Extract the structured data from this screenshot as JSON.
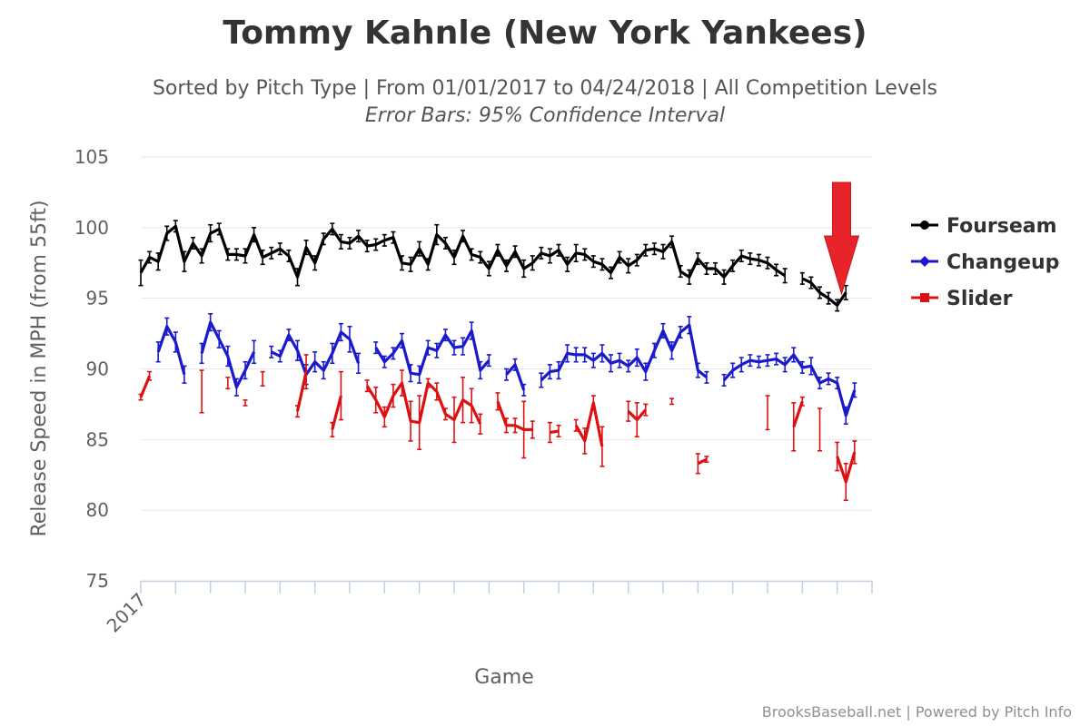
{
  "chart_data": {
    "type": "line",
    "title": "Tommy Kahnle (New York Yankees)",
    "subtitle": "Sorted by Pitch Type | From 01/01/2017 to 04/24/2018 | All Competition Levels",
    "subtitle2": "Error Bars: 95% Confidence Interval",
    "ylabel": "Release Speed in MPH (from 55ft)",
    "xlabel": "Game",
    "x_tick_labels": [
      "2017"
    ],
    "y_ticks": [
      75,
      80,
      85,
      90,
      95,
      100,
      105
    ],
    "ylim": [
      75,
      105
    ],
    "xlim": [
      0,
      84
    ],
    "x_label_note": "game index",
    "grid": true,
    "legend_position": "right",
    "colors": {
      "Fourseam": "#000000",
      "Changeup": "#1a1acc",
      "Slider": "#dd1111",
      "arrow": "#e8232a"
    },
    "series": [
      {
        "name": "Fourseam",
        "marker": "circle",
        "points": [
          [
            0,
            96.8,
            0.9
          ],
          [
            1,
            97.9,
            0.4
          ],
          [
            2,
            97.6,
            0.6
          ],
          [
            3,
            99.6,
            0.5
          ],
          [
            4,
            100.1,
            0.4
          ],
          [
            5,
            97.6,
            0.7
          ],
          [
            6,
            98.9,
            0.4
          ],
          [
            7,
            98.0,
            0.5
          ],
          [
            8,
            99.6,
            0.6
          ],
          [
            9,
            99.9,
            0.4
          ],
          [
            10,
            98.1,
            0.4
          ],
          [
            11,
            98.1,
            0.4
          ],
          [
            12,
            98.0,
            0.5
          ],
          [
            13,
            99.5,
            0.5
          ],
          [
            14,
            97.9,
            0.5
          ],
          [
            15,
            98.2,
            0.4
          ],
          [
            16,
            98.5,
            0.4
          ],
          [
            17,
            98.0,
            0.4
          ],
          [
            18,
            96.5,
            0.6
          ],
          [
            19,
            98.6,
            0.5
          ],
          [
            20,
            97.5,
            0.5
          ],
          [
            21,
            99.2,
            0.4
          ],
          [
            22,
            99.9,
            0.4
          ],
          [
            23,
            99.0,
            0.5
          ],
          [
            24,
            98.9,
            0.4
          ],
          [
            25,
            99.4,
            0.4
          ],
          [
            26,
            98.7,
            0.4
          ],
          [
            27,
            98.8,
            0.4
          ],
          [
            28,
            99.1,
            0.4
          ],
          [
            29,
            99.3,
            0.4
          ],
          [
            30,
            97.5,
            0.5
          ],
          [
            31,
            97.4,
            0.5
          ],
          [
            32,
            98.5,
            0.5
          ],
          [
            33,
            97.4,
            0.4
          ],
          [
            34,
            99.5,
            0.7
          ],
          [
            35,
            98.9,
            0.4
          ],
          [
            36,
            97.9,
            0.5
          ],
          [
            37,
            99.4,
            0.4
          ],
          [
            38,
            98.1,
            0.4
          ],
          [
            39,
            97.9,
            0.4
          ],
          [
            40,
            97.1,
            0.5
          ],
          [
            41,
            98.4,
            0.4
          ],
          [
            42,
            97.3,
            0.4
          ],
          [
            43,
            98.3,
            0.4
          ],
          [
            44,
            97.1,
            0.6
          ],
          [
            45,
            97.5,
            0.5
          ],
          [
            46,
            98.2,
            0.4
          ],
          [
            47,
            98.0,
            0.5
          ],
          [
            48,
            98.4,
            0.4
          ],
          [
            49,
            97.4,
            0.5
          ],
          [
            50,
            98.2,
            0.6
          ],
          [
            51,
            98.1,
            0.4
          ],
          [
            52,
            97.6,
            0.4
          ],
          [
            53,
            97.4,
            0.4
          ],
          [
            54,
            96.8,
            0.4
          ],
          [
            55,
            97.9,
            0.4
          ],
          [
            56,
            97.3,
            0.5
          ],
          [
            57,
            97.7,
            0.4
          ],
          [
            58,
            98.4,
            0.4
          ],
          [
            59,
            98.5,
            0.4
          ],
          [
            60,
            98.3,
            0.5
          ],
          [
            61,
            99.0,
            0.4
          ],
          [
            62,
            96.9,
            0.4
          ],
          [
            63,
            96.5,
            0.5
          ],
          [
            64,
            97.8,
            0.4
          ],
          [
            65,
            97.1,
            0.4
          ],
          [
            66,
            97.1,
            0.4
          ],
          [
            67,
            96.5,
            0.5
          ],
          [
            68,
            97.3,
            0.4
          ],
          [
            69,
            98.0,
            0.4
          ],
          [
            70,
            97.8,
            0.4
          ],
          [
            71,
            97.7,
            0.4
          ],
          [
            72,
            97.5,
            0.4
          ],
          [
            73,
            97.0,
            0.4
          ],
          [
            74,
            96.6,
            0.5
          ],
          [
            75,
            null,
            null
          ],
          [
            76,
            96.4,
            0.4
          ],
          [
            77,
            96.1,
            0.4
          ],
          [
            78,
            95.4,
            0.4
          ],
          [
            79,
            95.0,
            0.4
          ],
          [
            80,
            94.5,
            0.4
          ],
          [
            81,
            95.4,
            0.5
          ]
        ]
      },
      {
        "name": "Changeup",
        "marker": "diamond",
        "points": [
          [
            0,
            null,
            null
          ],
          [
            1,
            null,
            null
          ],
          [
            2,
            91.2,
            0.7
          ],
          [
            3,
            93.0,
            0.6
          ],
          [
            4,
            91.9,
            0.7
          ],
          [
            5,
            89.6,
            0.6
          ],
          [
            6,
            null,
            null
          ],
          [
            7,
            91.1,
            0.7
          ],
          [
            8,
            93.3,
            0.6
          ],
          [
            9,
            92.1,
            0.6
          ],
          [
            10,
            90.9,
            0.7
          ],
          [
            11,
            88.7,
            0.6
          ],
          [
            12,
            89.9,
            0.6
          ],
          [
            13,
            91.2,
            0.8
          ],
          [
            14,
            null,
            null
          ],
          [
            15,
            91.2,
            0.4
          ],
          [
            16,
            90.9,
            0.4
          ],
          [
            17,
            92.4,
            0.4
          ],
          [
            18,
            91.3,
            0.7
          ],
          [
            19,
            89.6,
            0.7
          ],
          [
            20,
            90.5,
            0.7
          ],
          [
            21,
            89.9,
            0.6
          ],
          [
            22,
            91.1,
            0.7
          ],
          [
            23,
            92.6,
            0.6
          ],
          [
            24,
            92.1,
            0.9
          ],
          [
            25,
            90.4,
            0.7
          ],
          [
            26,
            null,
            null
          ],
          [
            27,
            91.5,
            0.4
          ],
          [
            28,
            90.5,
            0.4
          ],
          [
            29,
            91.1,
            0.4
          ],
          [
            30,
            92.0,
            0.5
          ],
          [
            31,
            89.7,
            0.6
          ],
          [
            32,
            89.6,
            0.6
          ],
          [
            33,
            91.5,
            0.5
          ],
          [
            34,
            91.3,
            0.5
          ],
          [
            35,
            92.4,
            0.4
          ],
          [
            36,
            91.5,
            0.5
          ],
          [
            37,
            91.6,
            0.6
          ],
          [
            38,
            92.7,
            0.6
          ],
          [
            39,
            89.9,
            0.6
          ],
          [
            40,
            90.6,
            0.4
          ],
          [
            41,
            null,
            null
          ],
          [
            42,
            89.6,
            0.4
          ],
          [
            43,
            90.3,
            0.4
          ],
          [
            44,
            88.5,
            0.4
          ],
          [
            45,
            null,
            null
          ],
          [
            46,
            89.2,
            0.5
          ],
          [
            47,
            89.8,
            0.5
          ],
          [
            48,
            89.9,
            0.6
          ],
          [
            49,
            91.1,
            0.6
          ],
          [
            50,
            91.0,
            0.5
          ],
          [
            51,
            91.0,
            0.5
          ],
          [
            52,
            90.6,
            0.5
          ],
          [
            53,
            91.1,
            0.6
          ],
          [
            54,
            90.4,
            0.6
          ],
          [
            55,
            90.6,
            0.5
          ],
          [
            56,
            90.2,
            0.4
          ],
          [
            57,
            90.8,
            0.6
          ],
          [
            58,
            89.8,
            0.6
          ],
          [
            59,
            91.3,
            0.5
          ],
          [
            60,
            92.7,
            0.5
          ],
          [
            61,
            91.3,
            0.6
          ],
          [
            62,
            92.6,
            0.4
          ],
          [
            63,
            93.1,
            0.6
          ],
          [
            64,
            89.9,
            0.5
          ],
          [
            65,
            89.4,
            0.4
          ],
          [
            66,
            null,
            null
          ],
          [
            67,
            89.2,
            0.4
          ],
          [
            68,
            89.9,
            0.5
          ],
          [
            69,
            90.3,
            0.5
          ],
          [
            70,
            90.6,
            0.4
          ],
          [
            71,
            90.5,
            0.4
          ],
          [
            72,
            90.6,
            0.4
          ],
          [
            73,
            90.7,
            0.4
          ],
          [
            74,
            90.3,
            0.5
          ],
          [
            75,
            91.0,
            0.5
          ],
          [
            76,
            90.1,
            0.4
          ],
          [
            77,
            90.2,
            0.6
          ],
          [
            78,
            89.0,
            0.4
          ],
          [
            79,
            89.3,
            0.4
          ],
          [
            80,
            89.0,
            0.4
          ],
          [
            81,
            86.7,
            0.6
          ],
          [
            82,
            88.5,
            0.5
          ]
        ]
      },
      {
        "name": "Slider",
        "marker": "square",
        "points": [
          [
            0,
            88.0,
            0.2
          ],
          [
            1,
            89.5,
            0.3
          ],
          [
            2,
            null,
            null
          ],
          [
            3,
            null,
            null
          ],
          [
            4,
            null,
            null
          ],
          [
            5,
            null,
            null
          ],
          [
            6,
            null,
            null
          ],
          [
            7,
            88.4,
            1.5
          ],
          [
            8,
            null,
            null
          ],
          [
            9,
            null,
            null
          ],
          [
            10,
            89.0,
            0.4
          ],
          [
            11,
            null,
            null
          ],
          [
            12,
            87.6,
            0.2
          ],
          [
            13,
            null,
            null
          ],
          [
            14,
            89.3,
            0.5
          ],
          [
            15,
            null,
            null
          ],
          [
            16,
            null,
            null
          ],
          [
            17,
            null,
            null
          ],
          [
            18,
            87.0,
            0.4
          ],
          [
            19,
            89.8,
            1.2
          ],
          [
            20,
            null,
            null
          ],
          [
            21,
            null,
            null
          ],
          [
            22,
            85.7,
            0.5
          ],
          [
            23,
            88.1,
            1.7
          ],
          [
            24,
            null,
            null
          ],
          [
            25,
            null,
            null
          ],
          [
            26,
            88.8,
            0.4
          ],
          [
            27,
            87.8,
            0.9
          ],
          [
            28,
            86.6,
            0.7
          ],
          [
            29,
            88.1,
            0.8
          ],
          [
            30,
            89.0,
            0.9
          ],
          [
            31,
            86.3,
            1.4
          ],
          [
            32,
            86.2,
            1.9
          ],
          [
            33,
            89.0,
            0.3
          ],
          [
            34,
            88.4,
            0.6
          ],
          [
            35,
            86.8,
            0.4
          ],
          [
            36,
            86.4,
            1.6
          ],
          [
            37,
            87.8,
            1.6
          ],
          [
            38,
            87.4,
            1.2
          ],
          [
            39,
            86.1,
            0.7
          ],
          [
            40,
            null,
            null
          ],
          [
            41,
            87.7,
            0.6
          ],
          [
            42,
            86.0,
            0.5
          ],
          [
            43,
            86.0,
            0.5
          ],
          [
            44,
            85.7,
            2.0
          ],
          [
            45,
            85.7,
            0.6
          ],
          [
            46,
            null,
            null
          ],
          [
            47,
            85.5,
            0.7
          ],
          [
            48,
            85.6,
            0.4
          ],
          [
            49,
            null,
            null
          ],
          [
            50,
            86.0,
            0.4
          ],
          [
            51,
            84.9,
            0.9
          ],
          [
            52,
            87.6,
            0.5
          ],
          [
            53,
            84.5,
            1.4
          ],
          [
            54,
            null,
            null
          ],
          [
            55,
            null,
            null
          ],
          [
            56,
            87.0,
            0.7
          ],
          [
            57,
            86.4,
            1.2
          ],
          [
            58,
            87.1,
            0.4
          ],
          [
            59,
            null,
            null
          ],
          [
            60,
            null,
            null
          ],
          [
            61,
            87.7,
            0.2
          ],
          [
            62,
            null,
            null
          ],
          [
            63,
            null,
            null
          ],
          [
            64,
            83.3,
            0.7
          ],
          [
            65,
            83.6,
            0.2
          ],
          [
            66,
            null,
            null
          ],
          [
            67,
            null,
            null
          ],
          [
            68,
            null,
            null
          ],
          [
            69,
            null,
            null
          ],
          [
            70,
            null,
            null
          ],
          [
            71,
            null,
            null
          ],
          [
            72,
            86.9,
            1.2
          ],
          [
            73,
            null,
            null
          ],
          [
            74,
            null,
            null
          ],
          [
            75,
            85.9,
            1.7
          ],
          [
            76,
            87.7,
            0.3
          ],
          [
            77,
            null,
            null
          ],
          [
            78,
            85.7,
            1.5
          ],
          [
            79,
            null,
            null
          ],
          [
            80,
            83.8,
            1.0
          ],
          [
            81,
            82.0,
            1.3
          ],
          [
            82,
            84.1,
            0.8
          ]
        ]
      }
    ],
    "annotation": {
      "type": "arrow",
      "x": 80.5,
      "y_top": 103.2,
      "y_tip": 95.3
    }
  },
  "credits": "BrooksBaseball.net | Powered by Pitch Info"
}
